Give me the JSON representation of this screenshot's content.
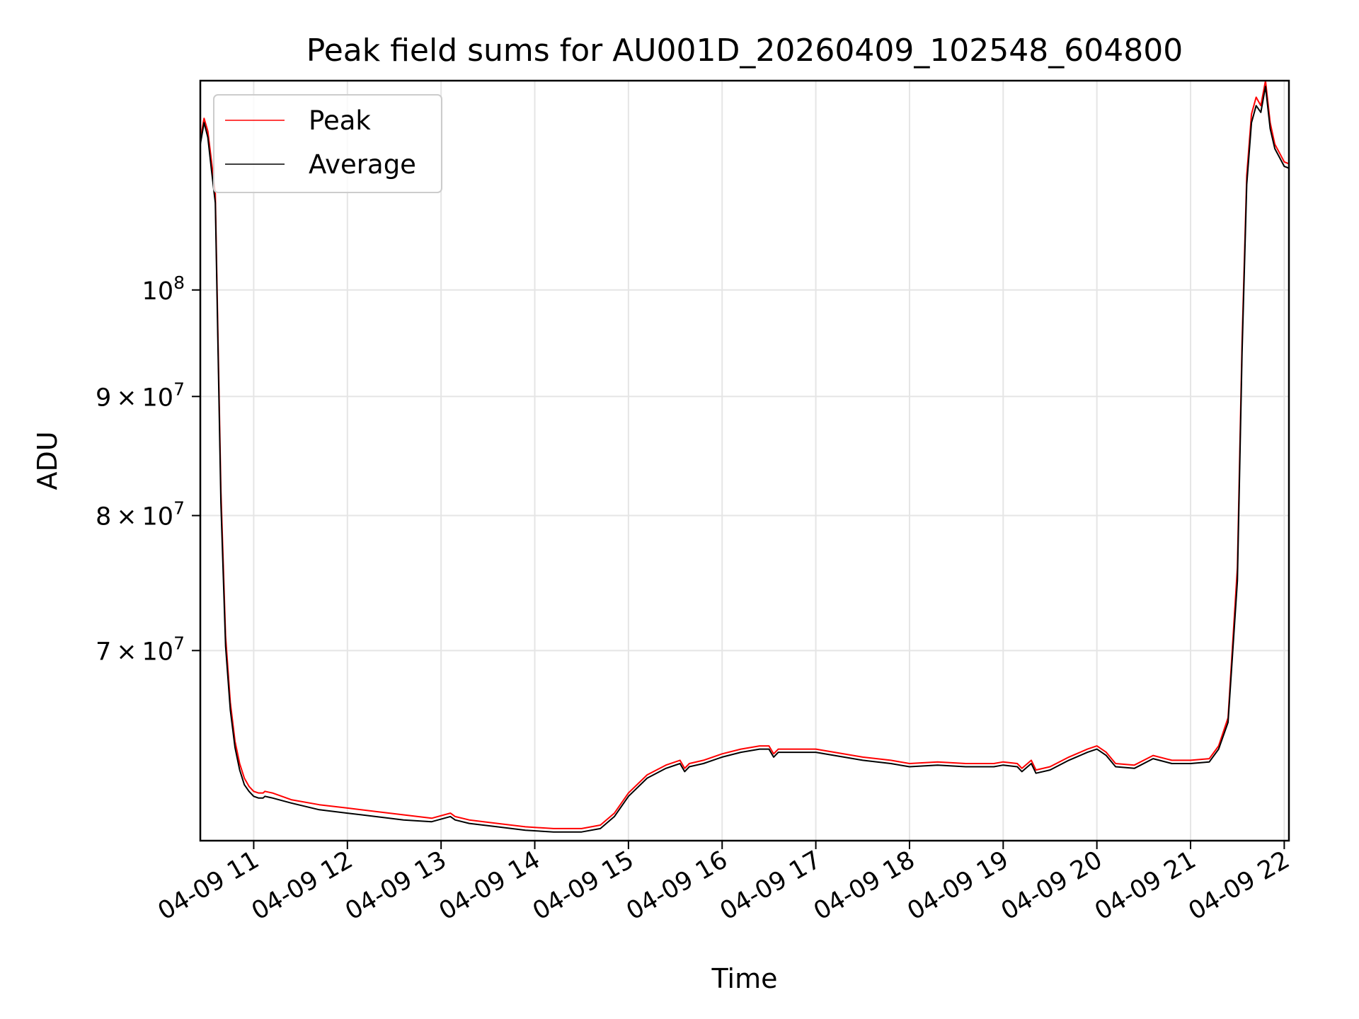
{
  "chart_data": {
    "type": "line",
    "title": "Peak field sums for AU001D_20260409_102548_604800",
    "xlabel": "Time",
    "ylabel": "ADU",
    "x_date": "04-09",
    "xlim": [
      10.43,
      22.05
    ],
    "ylim": [
      58000000,
      123000000
    ],
    "y_scale": "log",
    "grid": true,
    "legend_position": "top-left",
    "x_ticks": [
      {
        "value": 11,
        "label": "04-09 11"
      },
      {
        "value": 12,
        "label": "04-09 12"
      },
      {
        "value": 13,
        "label": "04-09 13"
      },
      {
        "value": 14,
        "label": "04-09 14"
      },
      {
        "value": 15,
        "label": "04-09 15"
      },
      {
        "value": 16,
        "label": "04-09 16"
      },
      {
        "value": 17,
        "label": "04-09 17"
      },
      {
        "value": 18,
        "label": "04-09 18"
      },
      {
        "value": 19,
        "label": "04-09 19"
      },
      {
        "value": 20,
        "label": "04-09 20"
      },
      {
        "value": 21,
        "label": "04-09 21"
      },
      {
        "value": 22,
        "label": "04-09 22"
      }
    ],
    "y_ticks": [
      {
        "value": 70000000,
        "mantissa": "7",
        "exponent": "7"
      },
      {
        "value": 80000000,
        "mantissa": "8",
        "exponent": "7"
      },
      {
        "value": 90000000,
        "mantissa": "9",
        "exponent": "7"
      },
      {
        "value": 100000000,
        "mantissa": "",
        "exponent": "8"
      }
    ],
    "series": [
      {
        "name": "Peak",
        "color": "#ff0000",
        "x": [
          10.43,
          10.47,
          10.51,
          10.55,
          10.59,
          10.62,
          10.65,
          10.7,
          10.75,
          10.8,
          10.85,
          10.9,
          10.95,
          11.0,
          11.05,
          11.1,
          11.12,
          11.2,
          11.4,
          11.7,
          12.0,
          12.3,
          12.6,
          12.9,
          13.1,
          13.15,
          13.3,
          13.6,
          13.9,
          14.2,
          14.5,
          14.7,
          14.85,
          15.0,
          15.2,
          15.4,
          15.55,
          15.6,
          15.65,
          15.8,
          16.0,
          16.2,
          16.4,
          16.5,
          16.55,
          16.6,
          16.8,
          17.0,
          17.2,
          17.5,
          17.8,
          18.0,
          18.3,
          18.6,
          18.9,
          19.0,
          19.15,
          19.2,
          19.3,
          19.35,
          19.5,
          19.7,
          19.9,
          20.0,
          20.1,
          20.2,
          20.4,
          20.6,
          20.8,
          21.0,
          21.2,
          21.3,
          21.4,
          21.5,
          21.55,
          21.6,
          21.65,
          21.7,
          21.75,
          21.8,
          21.85,
          21.9,
          21.95,
          22.0,
          22.05
        ],
        "values": [
          116000000,
          118500000,
          117000000,
          113500000,
          110000000,
          95000000,
          82000000,
          71000000,
          66500000,
          64000000,
          62600000,
          61700000,
          61200000,
          60900000,
          60800000,
          60800000,
          60900000,
          60800000,
          60400000,
          60100000,
          59900000,
          59700000,
          59500000,
          59300000,
          59600000,
          59400000,
          59200000,
          59000000,
          58800000,
          58700000,
          58700000,
          58900000,
          59600000,
          60800000,
          61900000,
          62500000,
          62800000,
          62300000,
          62600000,
          62800000,
          63200000,
          63500000,
          63700000,
          63700000,
          63200000,
          63500000,
          63500000,
          63500000,
          63300000,
          63000000,
          62800000,
          62600000,
          62700000,
          62600000,
          62600000,
          62700000,
          62600000,
          62300000,
          62800000,
          62200000,
          62400000,
          63000000,
          63500000,
          63700000,
          63300000,
          62600000,
          62500000,
          63100000,
          62800000,
          62800000,
          62900000,
          63700000,
          65500000,
          76000000,
          95000000,
          112000000,
          119000000,
          121000000,
          120000000,
          123000000,
          118000000,
          115500000,
          114500000,
          113500000,
          113300000
        ]
      },
      {
        "name": "Average",
        "color": "#000000",
        "x": [
          10.43,
          10.47,
          10.51,
          10.55,
          10.59,
          10.62,
          10.65,
          10.7,
          10.75,
          10.8,
          10.85,
          10.9,
          10.95,
          11.0,
          11.05,
          11.1,
          11.12,
          11.2,
          11.4,
          11.7,
          12.0,
          12.3,
          12.6,
          12.9,
          13.1,
          13.15,
          13.3,
          13.6,
          13.9,
          14.2,
          14.5,
          14.7,
          14.85,
          15.0,
          15.2,
          15.4,
          15.55,
          15.6,
          15.65,
          15.8,
          16.0,
          16.2,
          16.4,
          16.5,
          16.55,
          16.6,
          16.8,
          17.0,
          17.2,
          17.5,
          17.8,
          18.0,
          18.3,
          18.6,
          18.9,
          19.0,
          19.15,
          19.2,
          19.3,
          19.35,
          19.5,
          19.7,
          19.9,
          20.0,
          20.1,
          20.2,
          20.4,
          20.6,
          20.8,
          21.0,
          21.2,
          21.3,
          21.4,
          21.5,
          21.55,
          21.6,
          21.65,
          21.7,
          21.75,
          21.8,
          21.85,
          21.9,
          21.95,
          22.0,
          22.05
        ],
        "values": [
          115500000,
          118000000,
          116300000,
          112500000,
          109000000,
          94000000,
          81000000,
          70300000,
          66000000,
          63600000,
          62200000,
          61300000,
          60900000,
          60600000,
          60500000,
          60500000,
          60600000,
          60500000,
          60200000,
          59800000,
          59600000,
          59400000,
          59200000,
          59100000,
          59400000,
          59200000,
          59000000,
          58800000,
          58600000,
          58500000,
          58500000,
          58700000,
          59400000,
          60600000,
          61700000,
          62300000,
          62600000,
          62100000,
          62400000,
          62600000,
          63000000,
          63300000,
          63500000,
          63500000,
          63000000,
          63300000,
          63300000,
          63300000,
          63100000,
          62800000,
          62600000,
          62400000,
          62500000,
          62400000,
          62400000,
          62500000,
          62400000,
          62100000,
          62600000,
          62000000,
          62200000,
          62800000,
          63300000,
          63500000,
          63100000,
          62400000,
          62300000,
          62900000,
          62600000,
          62600000,
          62700000,
          63500000,
          65200000,
          75000000,
          94000000,
          111000000,
          118000000,
          120000000,
          119200000,
          122300000,
          117300000,
          115000000,
          114000000,
          113000000,
          112800000
        ]
      }
    ]
  }
}
